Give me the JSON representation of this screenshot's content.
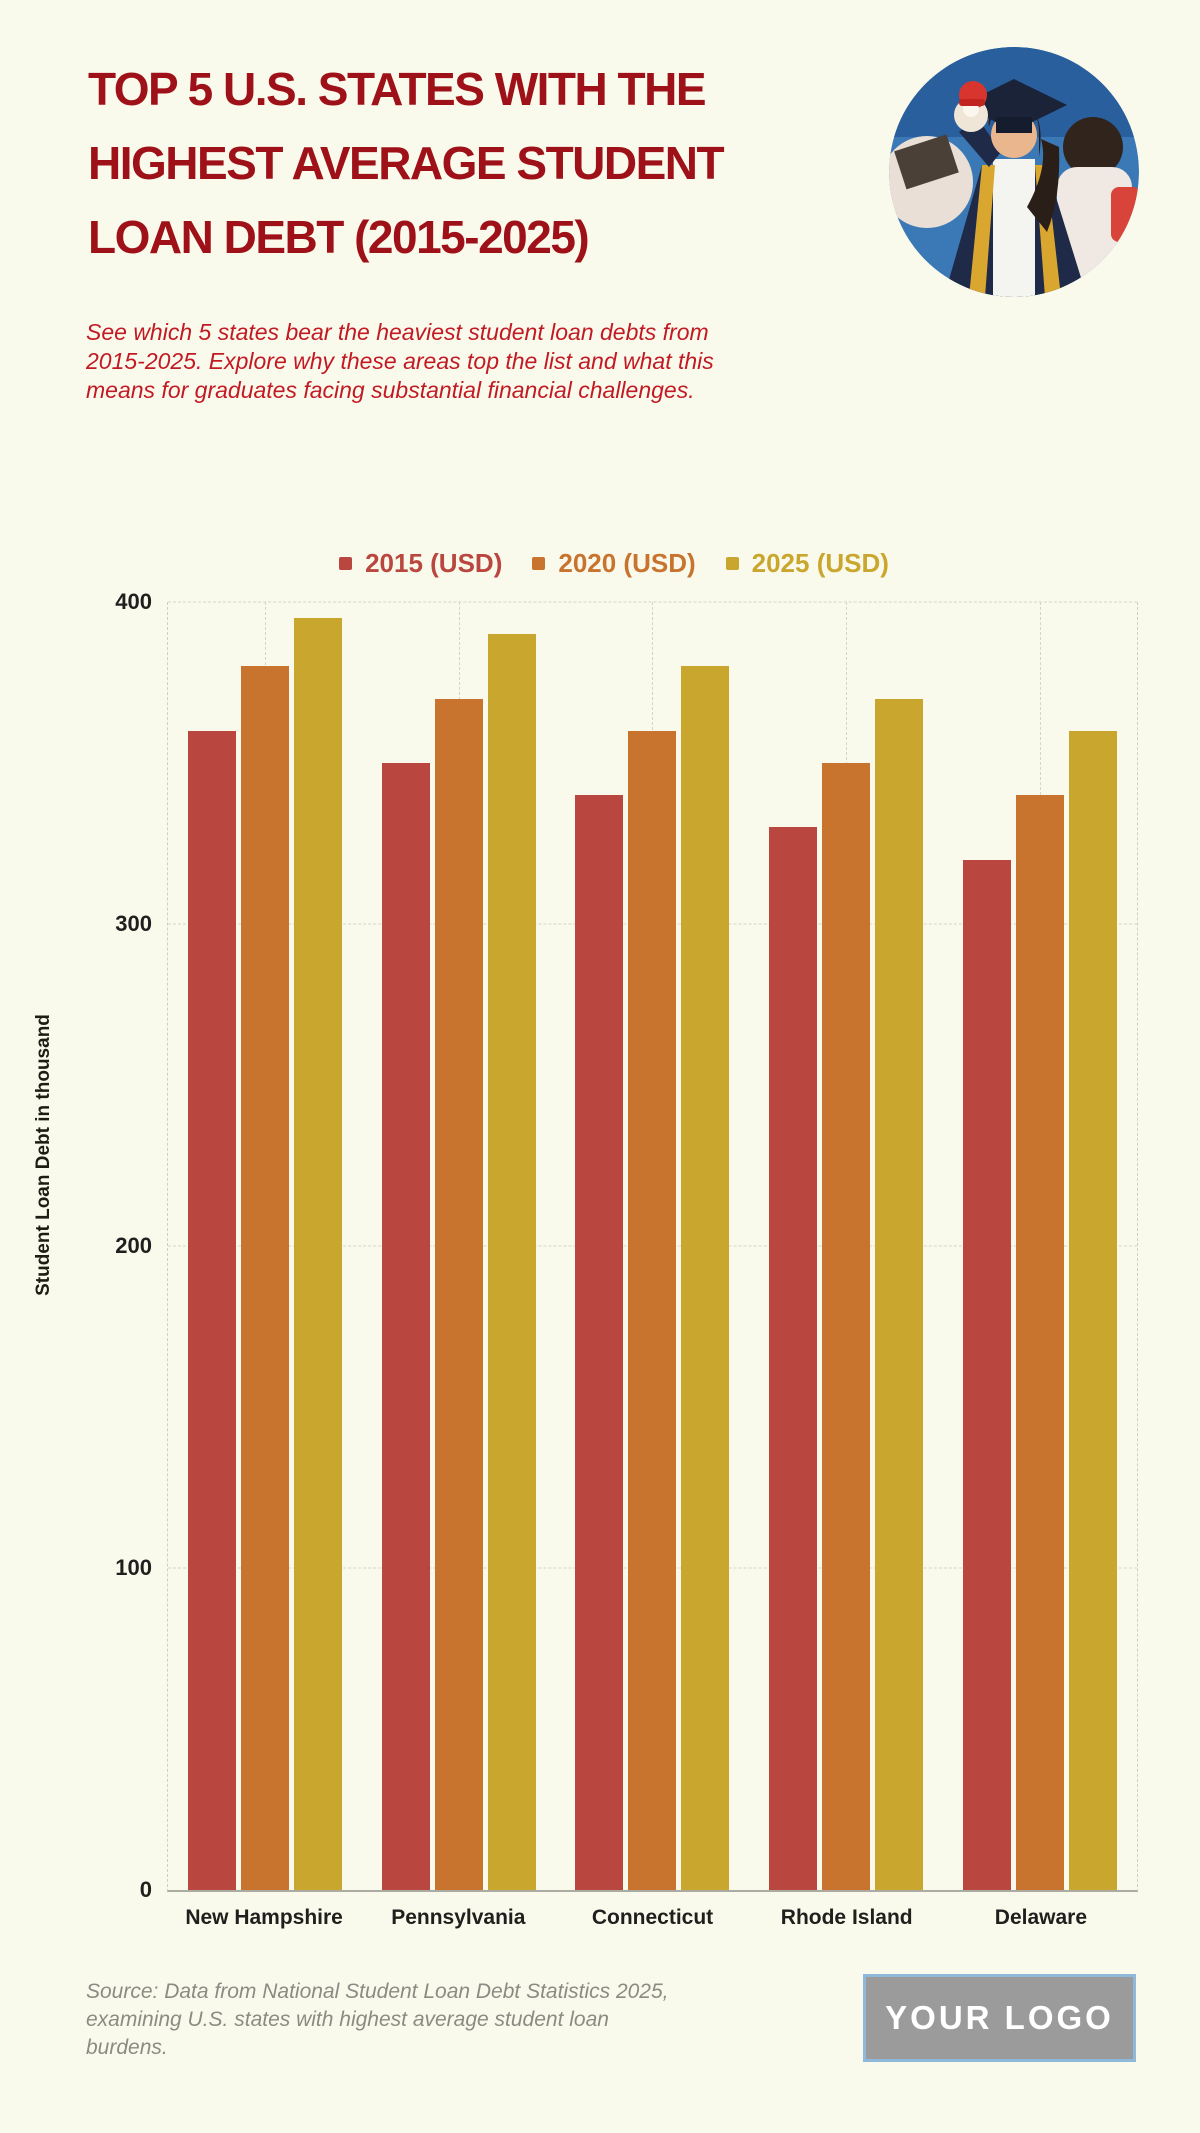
{
  "page": {
    "background": "#fafaec"
  },
  "header": {
    "title_lines": [
      "TOP 5 U.S. STATES WITH THE",
      "HIGHEST AVERAGE STUDENT",
      "LOAN DEBT (2015-2025)"
    ],
    "title_color": "#9e1118",
    "subtitle": "See which 5 states bear the heaviest student loan debts from 2015-2025. Explore why these areas top the list and what this means for graduates facing substantial financial challenges.",
    "subtitle_color": "#c21a24"
  },
  "hero_image": {
    "description": "graduate in navy gown with gold trim holding a red plush toy"
  },
  "chart_data": {
    "type": "bar",
    "categories": [
      "New Hampshire",
      "Pennsylvania",
      "Connecticut",
      "Rhode Island",
      "Delaware"
    ],
    "series": [
      {
        "name": "2015 (USD)",
        "color": "#b94740",
        "values": [
          360,
          350,
          340,
          330,
          320
        ]
      },
      {
        "name": "2020 (USD)",
        "color": "#c8742f",
        "values": [
          380,
          370,
          360,
          350,
          340
        ]
      },
      {
        "name": "2025 (USD)",
        "color": "#c9a72f",
        "values": [
          395,
          390,
          380,
          370,
          360
        ]
      }
    ],
    "ylabel": "Student Loan Debt in thousand",
    "xlabel": "",
    "yticks": [
      0,
      100,
      200,
      300,
      400
    ],
    "ylim": [
      0,
      400
    ],
    "grid": "dashed",
    "legend_position": "top"
  },
  "footer": {
    "source": "Source: Data from National Student Loan Debt Statistics 2025, examining U.S. states with highest average student loan burdens.",
    "logo": "YOUR LOGO"
  }
}
